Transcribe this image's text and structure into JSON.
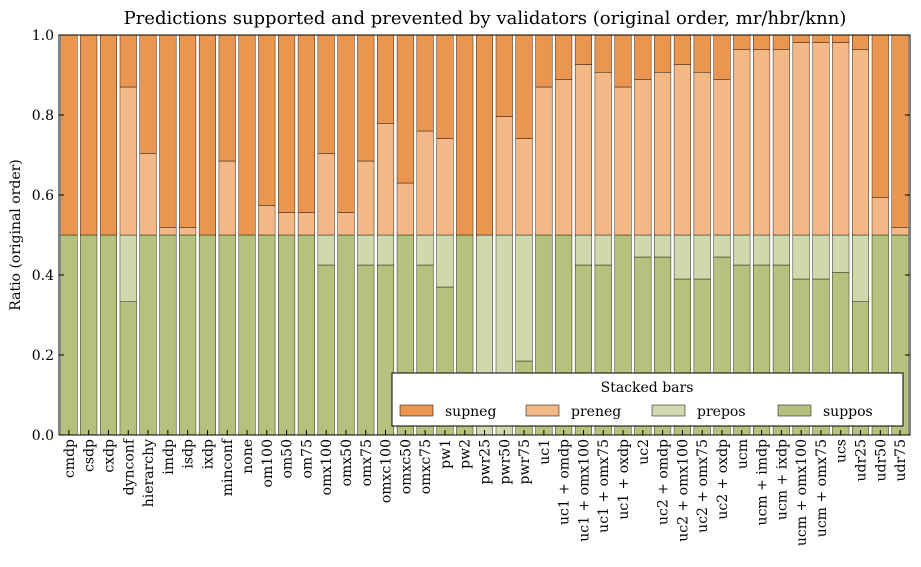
{
  "chart_data": {
    "type": "bar",
    "stacked": true,
    "title": "Predictions supported and prevented by validators (original order, mr/hbr/knn)",
    "xlabel": "",
    "ylabel": "Ratio (original order)",
    "ylim": [
      0.0,
      1.0
    ],
    "yticks": [
      "0.0",
      "0.2",
      "0.4",
      "0.6",
      "0.8",
      "1.0"
    ],
    "grid": false,
    "legend": {
      "title": "Stacked bars",
      "placement": "bottom-right",
      "order": [
        "supneg",
        "preneg",
        "prepos",
        "suppos"
      ]
    },
    "categories": [
      "cmdp",
      "csdp",
      "cxdp",
      "dynconf",
      "hierarchy",
      "imdp",
      "isdp",
      "ixdp",
      "minconf",
      "none",
      "om100",
      "om50",
      "om75",
      "omx100",
      "omx50",
      "omx75",
      "omxc100",
      "omxc50",
      "omxc75",
      "pw1",
      "pw2",
      "pwr25",
      "pwr50",
      "pwr75",
      "uc1",
      "uc1 + omdp",
      "uc1 + omx100",
      "uc1 + omx75",
      "uc1 + oxdp",
      "uc2",
      "uc2 + omdp",
      "uc2 + omx100",
      "uc2 + omx75",
      "uc2 + oxdp",
      "ucm",
      "ucm + imdp",
      "ucm + ixdp",
      "ucm + omx100",
      "ucm + omx75",
      "ucs",
      "udr25",
      "udr50",
      "udr75"
    ],
    "series": [
      {
        "name": "suppos",
        "color": "#b5c27e",
        "values": [
          0.5,
          0.5,
          0.5,
          0.333,
          0.5,
          0.5,
          0.5,
          0.5,
          0.5,
          0.5,
          0.5,
          0.5,
          0.5,
          0.425,
          0.5,
          0.425,
          0.425,
          0.5,
          0.425,
          0.37,
          0.5,
          0.0,
          0.0,
          0.185,
          0.5,
          0.5,
          0.425,
          0.425,
          0.5,
          0.445,
          0.445,
          0.39,
          0.39,
          0.445,
          0.425,
          0.425,
          0.425,
          0.39,
          0.39,
          0.407,
          0.333,
          0.5,
          0.5
        ]
      },
      {
        "name": "prepos",
        "color": "#cfd9ad",
        "values": [
          0.0,
          0.0,
          0.0,
          0.167,
          0.0,
          0.0,
          0.0,
          0.0,
          0.0,
          0.0,
          0.0,
          0.0,
          0.0,
          0.075,
          0.0,
          0.075,
          0.075,
          0.0,
          0.075,
          0.13,
          0.0,
          0.5,
          0.5,
          0.315,
          0.0,
          0.0,
          0.075,
          0.075,
          0.0,
          0.055,
          0.055,
          0.11,
          0.11,
          0.055,
          0.075,
          0.075,
          0.075,
          0.11,
          0.11,
          0.093,
          0.167,
          0.0,
          0.0
        ]
      },
      {
        "name": "preneg",
        "color": "#f2b886",
        "values": [
          0.0,
          0.0,
          0.0,
          0.37,
          0.204,
          0.019,
          0.019,
          0.0,
          0.185,
          0.0,
          0.074,
          0.056,
          0.056,
          0.204,
          0.056,
          0.185,
          0.278,
          0.13,
          0.26,
          0.241,
          0.0,
          0.0,
          0.296,
          0.241,
          0.37,
          0.389,
          0.426,
          0.407,
          0.37,
          0.389,
          0.407,
          0.426,
          0.407,
          0.389,
          0.463,
          0.463,
          0.463,
          0.481,
          0.481,
          0.481,
          0.463,
          0.093,
          0.019
        ]
      },
      {
        "name": "supneg",
        "color": "#ea9650",
        "values": [
          0.5,
          0.5,
          0.5,
          0.13,
          0.296,
          0.481,
          0.481,
          0.5,
          0.315,
          0.5,
          0.426,
          0.444,
          0.444,
          0.296,
          0.444,
          0.315,
          0.222,
          0.37,
          0.24,
          0.259,
          0.5,
          0.5,
          0.204,
          0.259,
          0.13,
          0.111,
          0.074,
          0.093,
          0.13,
          0.111,
          0.093,
          0.074,
          0.093,
          0.111,
          0.037,
          0.037,
          0.037,
          0.019,
          0.019,
          0.019,
          0.037,
          0.407,
          0.481
        ]
      }
    ]
  }
}
